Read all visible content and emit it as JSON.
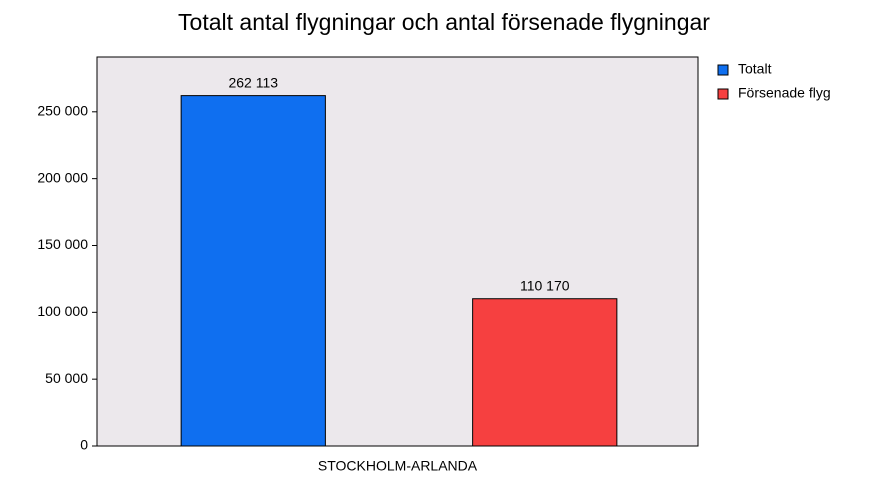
{
  "chart_data": {
    "type": "bar",
    "title": "Totalt antal flygningar och antal försenade flygningar",
    "categories": [
      "STOCKHOLM-ARLANDA"
    ],
    "series": [
      {
        "name": "Totalt",
        "color": "#0f6ff0",
        "values": [
          262113
        ],
        "value_labels": [
          "262 113"
        ]
      },
      {
        "name": "Försenade flyg",
        "color": "#f64040",
        "values": [
          110170
        ],
        "value_labels": [
          "110 170"
        ]
      }
    ],
    "ylim": [
      0,
      291000
    ],
    "yticks": [
      0,
      {
        "value": 50000,
        "label": "50 000"
      },
      {
        "value": 100000,
        "label": "100 000"
      },
      {
        "value": 150000,
        "label": "150 000"
      },
      {
        "value": 200000,
        "label": "200 000"
      },
      {
        "value": 250000,
        "label": "250 000"
      }
    ],
    "grid": false,
    "legend": "right",
    "background": "#ece8ec"
  }
}
